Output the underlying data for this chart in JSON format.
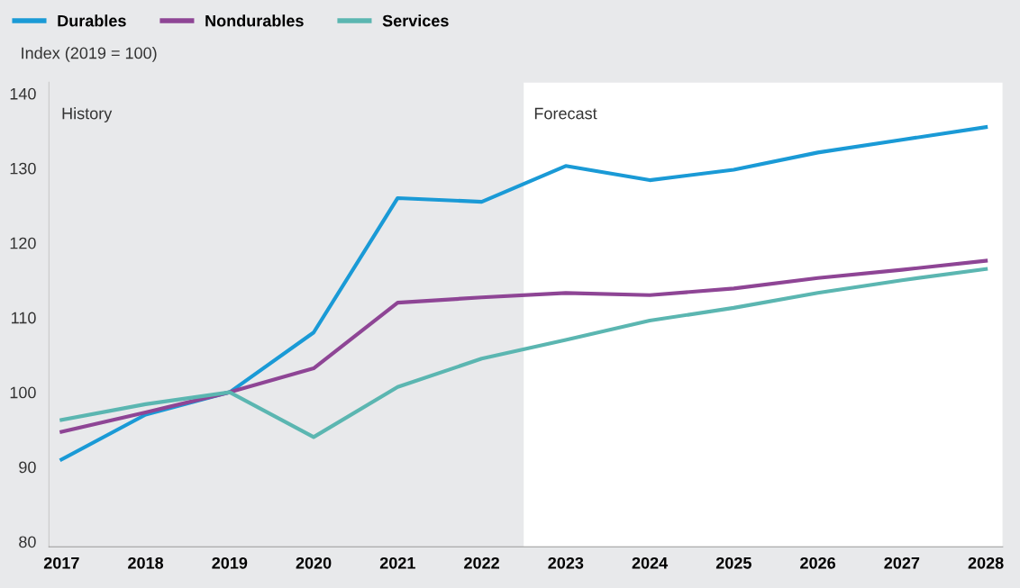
{
  "chart_data": {
    "type": "line",
    "ylabel": "Index (2019 = 100)",
    "x": [
      2017,
      2018,
      2019,
      2020,
      2021,
      2022,
      2023,
      2024,
      2025,
      2026,
      2027,
      2028
    ],
    "series": [
      {
        "name": "Durables",
        "color": "#1a9ad6",
        "values": [
          91,
          97,
          100,
          108,
          126,
          125.5,
          130.3,
          128.4,
          129.8,
          132.1,
          133.8,
          135.5
        ]
      },
      {
        "name": "Nondurables",
        "color": "#8e4595",
        "values": [
          94.7,
          97.3,
          100,
          103.2,
          112,
          112.7,
          113.3,
          113,
          113.9,
          115.3,
          116.4,
          117.6
        ]
      },
      {
        "name": "Services",
        "color": "#5bb6b1",
        "values": [
          96.3,
          98.4,
          100,
          94,
          100.7,
          104.5,
          107,
          109.6,
          111.3,
          113.3,
          115,
          116.5
        ]
      }
    ],
    "xlim": [
      2016.85,
      2028.2
    ],
    "xticks": [
      2017,
      2018,
      2019,
      2020,
      2021,
      2022,
      2023,
      2024,
      2025,
      2026,
      2027,
      2028
    ],
    "ylim": [
      79.3,
      141.5
    ],
    "yticks": [
      80,
      90,
      100,
      110,
      120,
      130,
      140
    ],
    "annotations": [
      "History"
    ],
    "bands": [
      {
        "axis": "x",
        "from": 2022.5,
        "to": 2028.2,
        "label": "Forecast",
        "color": "#ffffff"
      }
    ],
    "legend": "top left",
    "grid": false,
    "marker": "none",
    "line_style": "solid"
  }
}
